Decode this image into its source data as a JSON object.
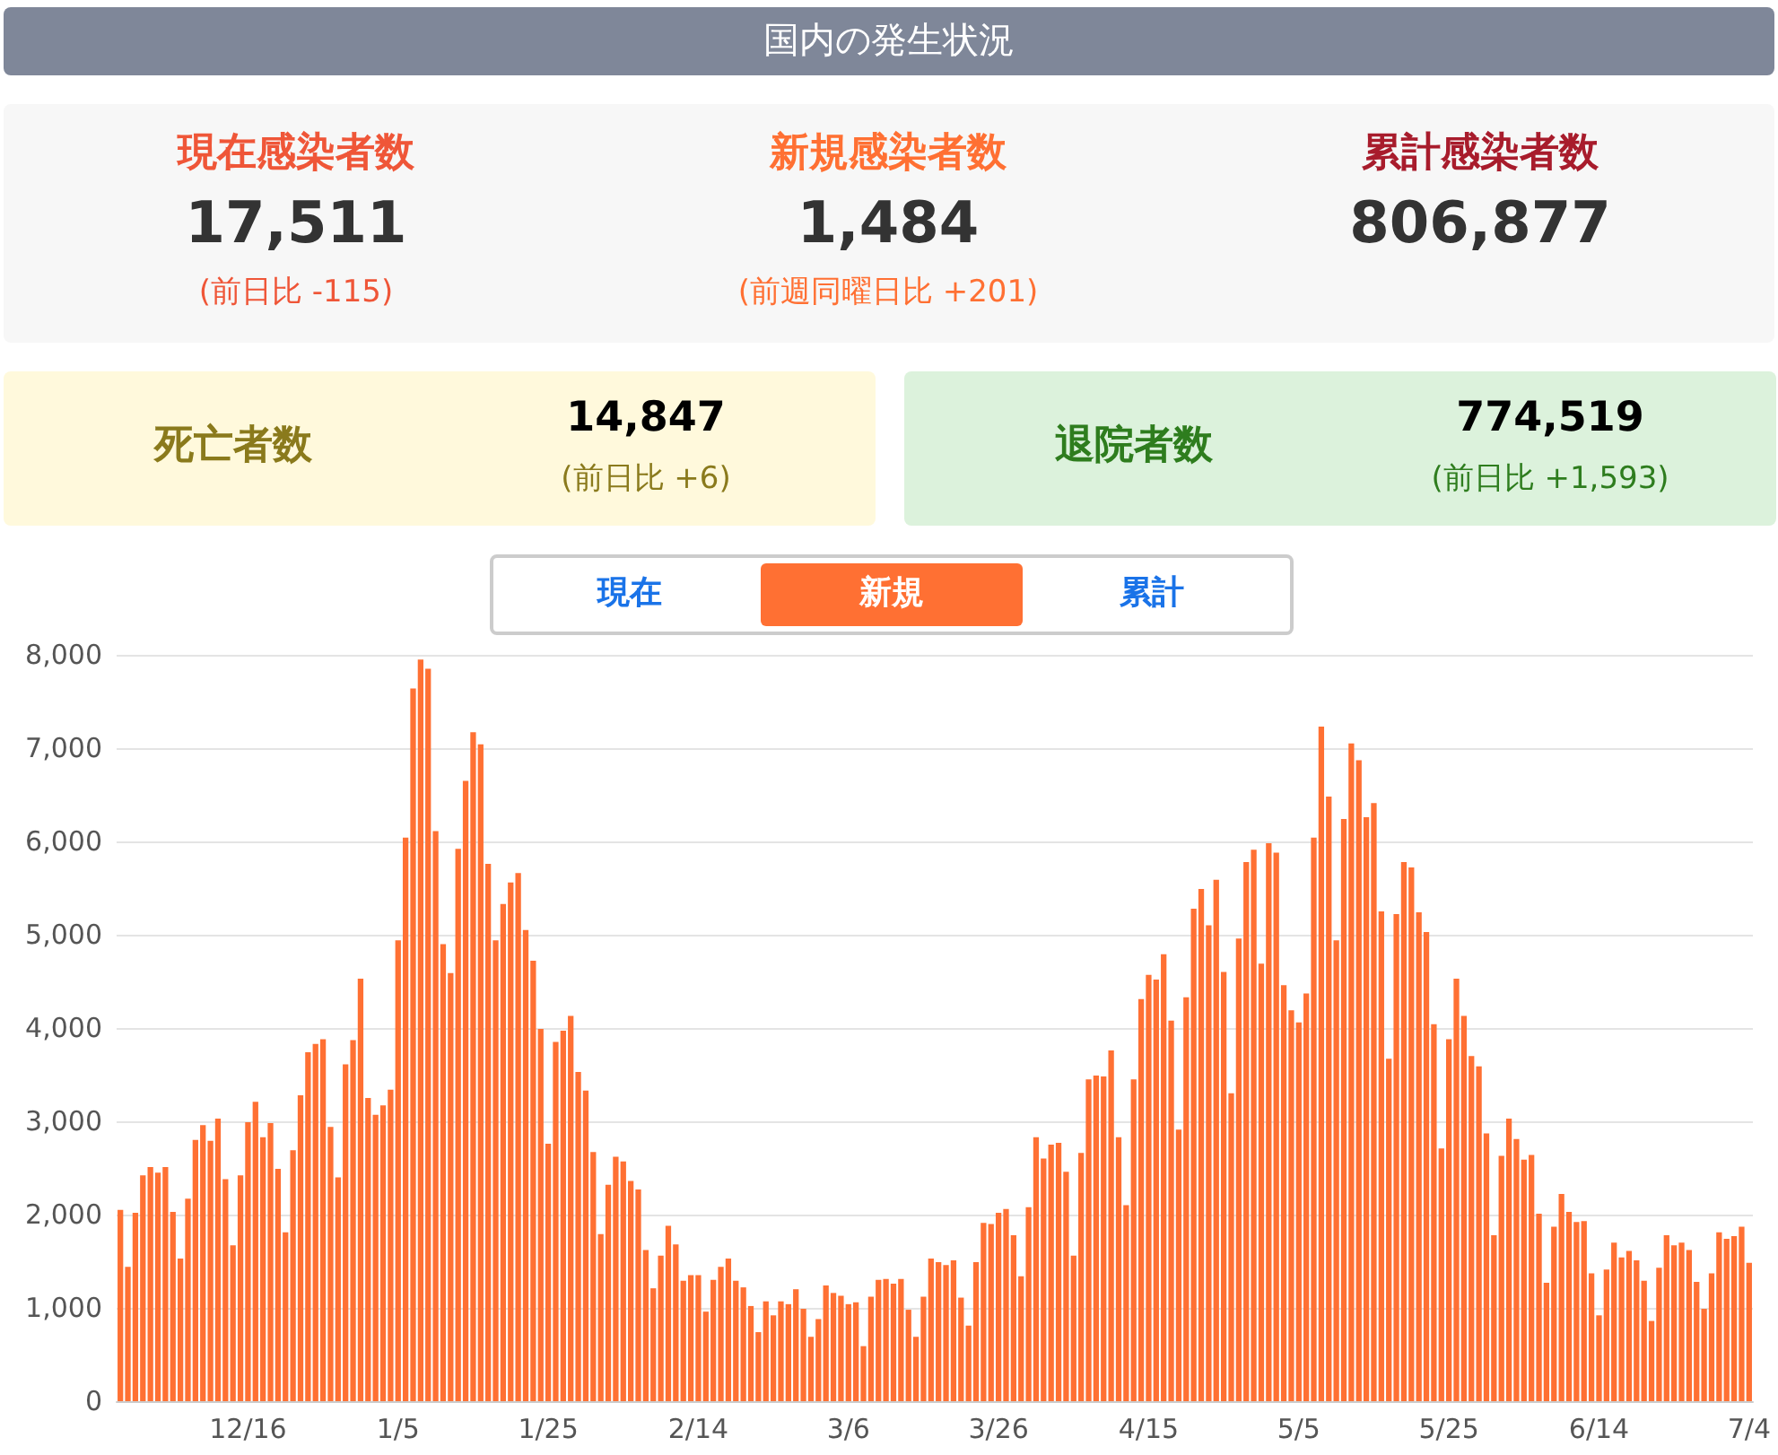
{
  "chart_data": [
    {
      "type": "other",
      "title": "国内の発生状況",
      "annotations": [
        "現在感染者数",
        "17,511",
        "(前日比 -115)",
        "新規感染者数",
        "1,484",
        "(前週同曜日比 +201)",
        "累計感染者数",
        "806,877",
        "死亡者数",
        "14,847",
        "(前日比 +6)",
        "退院者数",
        "774,519",
        "(前日比 +1,593)",
        "現在",
        "新規",
        "累計"
      ]
    },
    {
      "type": "bar",
      "color": "#ff7033",
      "categories": [
        null,
        null,
        null,
        null,
        null,
        null,
        null,
        null,
        null,
        null,
        null,
        null,
        null,
        null,
        null,
        null,
        null,
        "12/16",
        null,
        null,
        null,
        null,
        null,
        null,
        null,
        null,
        null,
        null,
        null,
        null,
        null,
        null,
        null,
        null,
        null,
        null,
        null,
        "1/5",
        null,
        null,
        null,
        null,
        null,
        null,
        null,
        null,
        null,
        null,
        null,
        null,
        null,
        null,
        null,
        null,
        null,
        null,
        null,
        "1/25",
        null,
        null,
        null,
        null,
        null,
        null,
        null,
        null,
        null,
        null,
        null,
        null,
        null,
        null,
        null,
        null,
        null,
        null,
        null,
        "2/14",
        null,
        null,
        null,
        null,
        null,
        null,
        null,
        null,
        null,
        null,
        null,
        null,
        null,
        null,
        null,
        null,
        null,
        null,
        null,
        "3/6",
        null,
        null,
        null,
        null,
        null,
        null,
        null,
        null,
        null,
        null,
        null,
        null,
        null,
        null,
        null,
        null,
        null,
        null,
        null,
        "3/26",
        null,
        null,
        null,
        null,
        null,
        null,
        null,
        null,
        null,
        null,
        null,
        null,
        null,
        null,
        null,
        null,
        null,
        null,
        null,
        "4/15",
        null,
        null,
        null,
        null,
        null,
        null,
        null,
        null,
        null,
        null,
        null,
        null,
        null,
        null,
        null,
        null,
        null,
        null,
        null,
        "5/5",
        null,
        null,
        null,
        null,
        null,
        null,
        null,
        null,
        null,
        null,
        null,
        null,
        null,
        null,
        null,
        null,
        null,
        null,
        null,
        "5/25",
        null,
        null,
        null,
        null,
        null,
        null,
        null,
        null,
        null,
        null,
        null,
        null,
        null,
        null,
        null,
        null,
        null,
        null,
        null,
        "6/14",
        null,
        null,
        null,
        null,
        null,
        null,
        null,
        null,
        null,
        null,
        null,
        null,
        null,
        null,
        null,
        null,
        null,
        null,
        null,
        "7/4"
      ],
      "values": [
        2050,
        1440,
        2020,
        2420,
        2510,
        2450,
        2510,
        2030,
        1530,
        2170,
        2800,
        2960,
        2790,
        3030,
        2380,
        1670,
        2420,
        2990,
        3210,
        2830,
        2980,
        2490,
        1810,
        2690,
        3280,
        3740,
        3830,
        3880,
        2940,
        2400,
        3610,
        3870,
        4530,
        3250,
        3070,
        3170,
        3340,
        4940,
        6040,
        7640,
        7950,
        7850,
        6110,
        4900,
        4590,
        5920,
        6650,
        7170,
        7040,
        5760,
        4940,
        5330,
        5560,
        5660,
        5050,
        4720,
        3990,
        2760,
        3850,
        3970,
        4130,
        3530,
        3330,
        2670,
        1790,
        2320,
        2620,
        2570,
        2360,
        2270,
        1620,
        1210,
        1560,
        1880,
        1680,
        1290,
        1350,
        1350,
        960,
        1300,
        1440,
        1530,
        1290,
        1220,
        1020,
        740,
        1070,
        920,
        1070,
        1040,
        1200,
        990,
        690,
        880,
        1240,
        1160,
        1130,
        1040,
        1060,
        590,
        1120,
        1300,
        1310,
        1260,
        1310,
        980,
        690,
        1120,
        1530,
        1490,
        1460,
        1510,
        1110,
        810,
        1490,
        1910,
        1900,
        2020,
        2060,
        1780,
        1340,
        2080,
        2830,
        2600,
        2750,
        2770,
        2460,
        1560,
        2660,
        3450,
        3490,
        3480,
        3760,
        2830,
        2100,
        3450,
        4310,
        4570,
        4520,
        4790,
        4080,
        2910,
        4330,
        5280,
        5490,
        5100,
        5590,
        4600,
        3300,
        4960,
        5780,
        5910,
        4690,
        5980,
        5880,
        4460,
        4190,
        4060,
        4370,
        6040,
        7230,
        6480,
        4940,
        6240,
        7050,
        6870,
        6260,
        6410,
        5250,
        3670,
        5220,
        5780,
        5720,
        5240,
        5030,
        4040,
        2710,
        3880,
        4530,
        4130,
        3700,
        3590,
        2870,
        1780,
        2630,
        3030,
        2810,
        2590,
        2640,
        2010,
        1270,
        1870,
        2220,
        2030,
        1920,
        1930,
        1370,
        920,
        1410,
        1700,
        1540,
        1610,
        1510,
        1290,
        860,
        1430,
        1780,
        1670,
        1700,
        1620,
        1280,
        990,
        1370,
        1810,
        1740,
        1770,
        1870,
        1484
      ],
      "ylim": [
        0,
        8000
      ],
      "yticks": [
        0,
        {
          "value": 1000,
          "label": "1,000"
        },
        {
          "value": 2000,
          "label": "2,000"
        },
        {
          "value": 3000,
          "label": "3,000"
        },
        {
          "value": 4000,
          "label": "4,000"
        },
        {
          "value": 5000,
          "label": "5,000"
        },
        {
          "value": 6000,
          "label": "6,000"
        },
        {
          "value": 7000,
          "label": "7,000"
        },
        {
          "value": 8000,
          "label": "8,000"
        }
      ],
      "grid": "y"
    }
  ]
}
